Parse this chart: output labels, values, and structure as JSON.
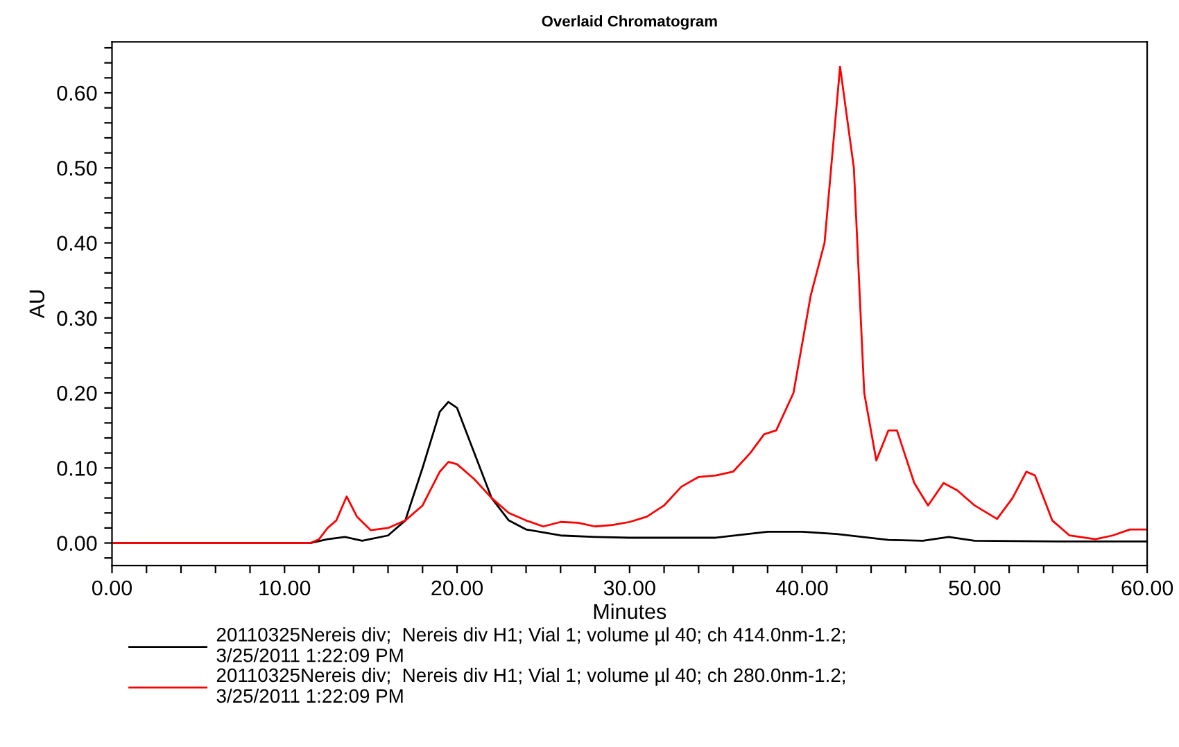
{
  "chart_data": {
    "type": "line",
    "title": "Overlaid Chromatogram",
    "xlabel": "Minutes",
    "ylabel": "AU",
    "xlim": [
      0,
      60
    ],
    "ylim": [
      -0.03,
      0.668
    ],
    "xticks": [
      {
        "value": 0,
        "label": "0.00"
      },
      {
        "value": 2,
        "label": null
      },
      {
        "value": 4,
        "label": null
      },
      {
        "value": 6,
        "label": null
      },
      {
        "value": 8,
        "label": null
      },
      {
        "value": 10,
        "label": "10.00"
      },
      {
        "value": 12,
        "label": null
      },
      {
        "value": 14,
        "label": null
      },
      {
        "value": 16,
        "label": null
      },
      {
        "value": 18,
        "label": null
      },
      {
        "value": 20,
        "label": "20.00"
      },
      {
        "value": 22,
        "label": null
      },
      {
        "value": 24,
        "label": null
      },
      {
        "value": 26,
        "label": null
      },
      {
        "value": 28,
        "label": null
      },
      {
        "value": 30,
        "label": "30.00"
      },
      {
        "value": 32,
        "label": null
      },
      {
        "value": 34,
        "label": null
      },
      {
        "value": 36,
        "label": null
      },
      {
        "value": 38,
        "label": null
      },
      {
        "value": 40,
        "label": "40.00"
      },
      {
        "value": 42,
        "label": null
      },
      {
        "value": 44,
        "label": null
      },
      {
        "value": 46,
        "label": null
      },
      {
        "value": 48,
        "label": null
      },
      {
        "value": 50,
        "label": "50.00"
      },
      {
        "value": 52,
        "label": null
      },
      {
        "value": 54,
        "label": null
      },
      {
        "value": 56,
        "label": null
      },
      {
        "value": 58,
        "label": null
      },
      {
        "value": 60,
        "label": "60.00"
      }
    ],
    "yticks": [
      {
        "value": -0.02,
        "label": null
      },
      {
        "value": 0,
        "label": "0.00"
      },
      {
        "value": 0.02,
        "label": null
      },
      {
        "value": 0.04,
        "label": null
      },
      {
        "value": 0.06,
        "label": null
      },
      {
        "value": 0.08,
        "label": null
      },
      {
        "value": 0.1,
        "label": "0.10"
      },
      {
        "value": 0.12,
        "label": null
      },
      {
        "value": 0.14,
        "label": null
      },
      {
        "value": 0.16,
        "label": null
      },
      {
        "value": 0.18,
        "label": null
      },
      {
        "value": 0.2,
        "label": "0.20"
      },
      {
        "value": 0.22,
        "label": null
      },
      {
        "value": 0.24,
        "label": null
      },
      {
        "value": 0.26,
        "label": null
      },
      {
        "value": 0.28,
        "label": null
      },
      {
        "value": 0.3,
        "label": "0.30"
      },
      {
        "value": 0.32,
        "label": null
      },
      {
        "value": 0.34,
        "label": null
      },
      {
        "value": 0.36,
        "label": null
      },
      {
        "value": 0.38,
        "label": null
      },
      {
        "value": 0.4,
        "label": "0.40"
      },
      {
        "value": 0.42,
        "label": null
      },
      {
        "value": 0.44,
        "label": null
      },
      {
        "value": 0.46,
        "label": null
      },
      {
        "value": 0.48,
        "label": null
      },
      {
        "value": 0.5,
        "label": "0.50"
      },
      {
        "value": 0.52,
        "label": null
      },
      {
        "value": 0.54,
        "label": null
      },
      {
        "value": 0.56,
        "label": null
      },
      {
        "value": 0.58,
        "label": null
      },
      {
        "value": 0.6,
        "label": "0.60"
      },
      {
        "value": 0.62,
        "label": null
      },
      {
        "value": 0.64,
        "label": null
      },
      {
        "value": 0.66,
        "label": null
      }
    ],
    "grid": false,
    "legend": "bottom",
    "marker": "none",
    "line_style": "solid",
    "series": [
      {
        "name": "20110325Nereis div;  Nereis div H1; Vial 1; volume µl 40; ch 414.0nm-1.2;\n3/25/2011 1:22:09 PM",
        "color": "#000000",
        "x": [
          0,
          5,
          11.5,
          12.5,
          13.5,
          14.5,
          16,
          17,
          18,
          19,
          19.5,
          20,
          21,
          22,
          23,
          24,
          26,
          28,
          30,
          35,
          38,
          40,
          42,
          45,
          47,
          48.5,
          50,
          55,
          60
        ],
        "values": [
          0,
          0,
          0,
          0.005,
          0.008,
          0.003,
          0.01,
          0.03,
          0.1,
          0.175,
          0.188,
          0.18,
          0.12,
          0.06,
          0.03,
          0.018,
          0.01,
          0.008,
          0.007,
          0.007,
          0.015,
          0.015,
          0.012,
          0.004,
          0.003,
          0.008,
          0.003,
          0.002,
          0.002
        ]
      },
      {
        "name": "20110325Nereis div;  Nereis div H1; Vial 1; volume µl 40; ch 280.0nm-1.2;\n3/25/2011 1:22:09 PM",
        "color": "#ff0000",
        "x": [
          0,
          5,
          11.5,
          12,
          12.5,
          13,
          13.6,
          14.2,
          15,
          16,
          17,
          18,
          19,
          19.5,
          20,
          21,
          22,
          23,
          24,
          25,
          26,
          27,
          28,
          29,
          30,
          31,
          32,
          33,
          34,
          35,
          36,
          37,
          37.8,
          38.5,
          39.5,
          40.5,
          41.3,
          42.2,
          43,
          43.6,
          44.3,
          45,
          45.5,
          46.5,
          47.3,
          48.2,
          49,
          50,
          51.3,
          52.2,
          53,
          53.5,
          54.5,
          55.5,
          57,
          58,
          59,
          60
        ],
        "values": [
          0,
          0,
          0,
          0.005,
          0.02,
          0.03,
          0.062,
          0.035,
          0.017,
          0.02,
          0.03,
          0.05,
          0.095,
          0.108,
          0.105,
          0.085,
          0.06,
          0.04,
          0.03,
          0.022,
          0.028,
          0.027,
          0.022,
          0.024,
          0.028,
          0.035,
          0.05,
          0.075,
          0.088,
          0.09,
          0.095,
          0.12,
          0.145,
          0.15,
          0.2,
          0.33,
          0.4,
          0.635,
          0.5,
          0.2,
          0.11,
          0.15,
          0.15,
          0.08,
          0.05,
          0.08,
          0.07,
          0.05,
          0.032,
          0.06,
          0.095,
          0.09,
          0.03,
          0.01,
          0.005,
          0.01,
          0.018,
          0.018
        ]
      }
    ]
  }
}
